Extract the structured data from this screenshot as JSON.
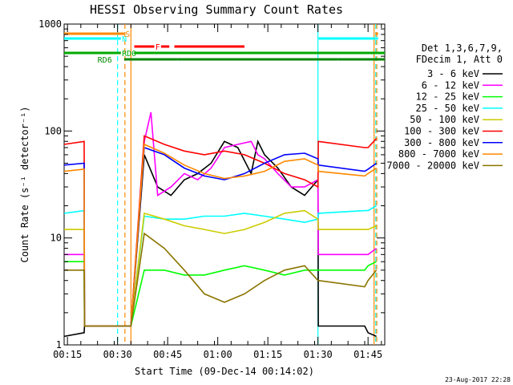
{
  "chart_data": {
    "type": "line",
    "title": "HESSI Observing Summary Count Rates",
    "xlabel": "Start Time (09-Dec-14 00:14:02)",
    "ylabel": "Count Rate (s⁻¹ detector⁻¹)",
    "y_scale": "log",
    "ylim": [
      1,
      1000
    ],
    "xlim_minutes": [
      0,
      96
    ],
    "x_ticks": [
      {
        "label": "00:15",
        "t": 1
      },
      {
        "label": "00:30",
        "t": 16
      },
      {
        "label": "00:45",
        "t": 31
      },
      {
        "label": "01:00",
        "t": 46
      },
      {
        "label": "01:15",
        "t": 61
      },
      {
        "label": "01:30",
        "t": 76
      },
      {
        "label": "01:45",
        "t": 91
      }
    ],
    "y_ticks": [
      {
        "label": "1",
        "v": 1
      },
      {
        "label": "10",
        "v": 10
      },
      {
        "label": "100",
        "v": 100
      },
      {
        "label": "1000",
        "v": 1000
      }
    ],
    "legend_header": [
      "Det 1,3,6,7,9,",
      "FDecim 1, Att 0"
    ],
    "legend_placement": "right",
    "series": [
      {
        "name": "3 - 6 keV",
        "color": "#000000",
        "t": [
          0,
          6,
          6.1,
          20,
          24,
          28,
          32,
          36,
          40,
          44,
          48,
          52,
          56,
          58,
          60,
          64,
          68,
          72,
          76,
          76.1,
          90,
          91,
          93.5
        ],
        "values": [
          1.2,
          1.3,
          1.5,
          1.5,
          60,
          30,
          25,
          35,
          40,
          50,
          80,
          70,
          40,
          80,
          60,
          45,
          30,
          25,
          35,
          1.5,
          1.5,
          1.3,
          1.2
        ]
      },
      {
        "name": "6 - 12 keV",
        "color": "#ff00ff",
        "t": [
          0,
          6,
          6.1,
          20,
          24,
          26,
          28,
          32,
          36,
          40,
          44,
          48,
          52,
          56,
          58,
          60,
          64,
          68,
          72,
          76,
          76.1,
          90,
          91,
          93.5
        ],
        "values": [
          7,
          7,
          1.5,
          1.5,
          80,
          150,
          25,
          30,
          40,
          35,
          45,
          70,
          75,
          80,
          60,
          55,
          40,
          30,
          30,
          35,
          7,
          7,
          7,
          8
        ]
      },
      {
        "name": "12 - 25 keV",
        "color": "#00ff00",
        "t": [
          0,
          6,
          6.1,
          20,
          24,
          30,
          36,
          42,
          48,
          54,
          60,
          66,
          72,
          76,
          76.1,
          90,
          91,
          93.5
        ],
        "values": [
          6,
          6,
          1.5,
          1.5,
          5,
          5,
          4.5,
          4.5,
          5,
          5.5,
          5,
          4.5,
          5,
          5,
          5,
          5,
          5.5,
          6
        ]
      },
      {
        "name": "25 - 50 keV",
        "color": "#00ffff",
        "t": [
          0,
          6,
          6.1,
          20,
          24,
          30,
          36,
          42,
          48,
          54,
          60,
          66,
          72,
          76,
          76.1,
          90,
          91,
          93.5
        ],
        "values": [
          17,
          18,
          1.5,
          1.5,
          16,
          15,
          15,
          16,
          16,
          17,
          16,
          15,
          14,
          15,
          17,
          18,
          18,
          20
        ]
      },
      {
        "name": "50 - 100 keV",
        "color": "#cccc00",
        "t": [
          0,
          6,
          6.1,
          20,
          24,
          30,
          36,
          42,
          48,
          54,
          60,
          66,
          72,
          76,
          76.1,
          90,
          91,
          93.5
        ],
        "values": [
          12,
          12,
          1.5,
          1.5,
          17,
          15,
          13,
          12,
          11,
          12,
          14,
          17,
          18,
          15,
          12,
          12,
          12,
          13
        ]
      },
      {
        "name": "100 - 300 keV",
        "color": "#ff0000",
        "t": [
          0,
          6,
          6.1,
          20,
          24,
          30,
          36,
          42,
          48,
          54,
          60,
          66,
          72,
          76,
          76.1,
          90,
          91,
          93.5
        ],
        "values": [
          75,
          80,
          1.5,
          1.5,
          90,
          75,
          65,
          60,
          65,
          60,
          50,
          40,
          35,
          30,
          80,
          70,
          70,
          85
        ]
      },
      {
        "name": "300 - 800 keV",
        "color": "#0000ff",
        "t": [
          0,
          6,
          6.1,
          20,
          24,
          30,
          36,
          42,
          48,
          54,
          60,
          66,
          72,
          76,
          76.1,
          90,
          91,
          93.5
        ],
        "values": [
          48,
          50,
          1.5,
          1.5,
          70,
          60,
          45,
          38,
          35,
          40,
          50,
          60,
          62,
          55,
          48,
          42,
          44,
          50
        ]
      },
      {
        "name": "800 - 7000 keV",
        "color": "#ff8800",
        "t": [
          0,
          6,
          6.1,
          20,
          24,
          30,
          36,
          42,
          48,
          54,
          60,
          66,
          72,
          76,
          76.1,
          90,
          91,
          93.5
        ],
        "values": [
          42,
          44,
          1.5,
          1.5,
          75,
          62,
          48,
          40,
          36,
          38,
          42,
          52,
          55,
          48,
          42,
          38,
          40,
          45
        ]
      },
      {
        "name": "7000 - 20000 keV",
        "color": "#8b7500",
        "t": [
          0,
          6,
          6.1,
          20,
          24,
          30,
          36,
          42,
          48,
          54,
          60,
          66,
          72,
          76,
          76.1,
          90,
          91,
          93.5
        ],
        "values": [
          5,
          5,
          1.5,
          1.5,
          11,
          8,
          5,
          3,
          2.5,
          3,
          4,
          5,
          5.5,
          4,
          4,
          3.5,
          4,
          5
        ]
      }
    ],
    "flag_bars": [
      {
        "label": "S",
        "color": "#ff8800",
        "segments": [
          [
            0,
            18
          ],
          [
            93.2,
            94
          ]
        ]
      },
      {
        "label": "N",
        "color": "#00ffff",
        "segments": [
          [
            0,
            17
          ],
          [
            76.2,
            94
          ]
        ]
      },
      {
        "label": "F",
        "color": "#ff0000",
        "segments": [
          [
            21,
            27
          ],
          [
            29,
            31.5
          ],
          [
            33,
            54
          ]
        ]
      },
      {
        "label": "RD0",
        "color": "#00aa00",
        "segments": [
          [
            0,
            17
          ],
          [
            21,
            96
          ]
        ]
      },
      {
        "label": "RD6",
        "color": "#008800",
        "segments": [
          [
            18,
            34
          ],
          [
            34,
            60
          ],
          [
            60,
            82
          ],
          [
            82,
            96
          ]
        ]
      }
    ],
    "vertical_markers": [
      {
        "t": 16,
        "color": "#00ffff",
        "style": "dashed"
      },
      {
        "t": 18.2,
        "color": "#ff8800",
        "style": "dashed"
      },
      {
        "t": 20,
        "color": "#ff8800",
        "style": "solid"
      },
      {
        "t": 76,
        "color": "#00ffff",
        "style": "solid"
      },
      {
        "t": 92.8,
        "color": "#ff8800",
        "style": "solid"
      },
      {
        "t": 93.3,
        "color": "#00ffff",
        "style": "dashed"
      },
      {
        "t": 93.6,
        "color": "#ff8800",
        "style": "dashed"
      }
    ]
  },
  "footer_date": "23-Aug-2017 22:28"
}
